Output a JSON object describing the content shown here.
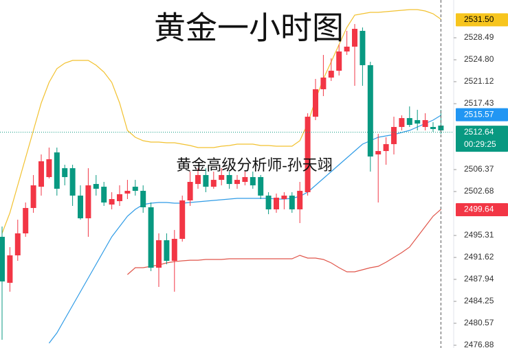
{
  "chart_data": {
    "type": "candlestick",
    "title": "黄金一小时图",
    "annotation": "黄金高级分析师-孙天翊",
    "up_color": "#f23645",
    "down_color": "#089981",
    "open": [
      2495.08,
      2487.36,
      2491.97,
      2495.66,
      2499.92,
      2503.49,
      2505.11,
      2509.25,
      2506.6,
      2506.6,
      2502.0,
      2498.19,
      2503.95,
      2503.49,
      2500.5,
      2501.07,
      2502.34,
      2503.49,
      2502.8,
      2500.04,
      2489.9,
      2494.51,
      2491.05,
      2494.74,
      2501.19,
      2503.95,
      2505.45,
      2503.49,
      2504.64,
      2505.45,
      2503.95,
      2504.3,
      2505.11,
      2505.11,
      2502.0,
      2499.69,
      2501.42,
      2502.0,
      2499.69,
      2502.57,
      2515.24,
      2519.85,
      2521.81,
      2522.96,
      2526.19,
      2527.0,
      2529.65,
      2523.89,
      2508.91,
      2509.48,
      2510.64,
      2513.52,
      2515.01,
      2514.67,
      2513.52,
      2513.52,
      2513.75
    ],
    "high": [
      2496.81,
      2493.35,
      2497.96,
      2500.84,
      2505.45,
      2508.91,
      2510.06,
      2510.06,
      2507.18,
      2507.18,
      2503.72,
      2506.6,
      2505.45,
      2504.3,
      2502.57,
      2503.72,
      2504.64,
      2504.64,
      2503.72,
      2500.84,
      2495.66,
      2495.66,
      2496.23,
      2502.0,
      2506.03,
      2506.6,
      2506.6,
      2506.03,
      2506.6,
      2506.03,
      2505.45,
      2506.26,
      2506.03,
      2505.45,
      2502.57,
      2502.34,
      2502.57,
      2502.57,
      2504.3,
      2515.82,
      2521.58,
      2525.61,
      2525.04,
      2527.34,
      2529.65,
      2530.8,
      2530.22,
      2524.46,
      2512.36,
      2511.79,
      2515.24,
      2515.47,
      2516.97,
      2516.4,
      2515.82,
      2514.32,
      2516.4
    ],
    "low": [
      2477.8,
      2485.87,
      2491.05,
      2495.08,
      2499.11,
      2502.0,
      2504.88,
      2502.0,
      2503.72,
      2500.27,
      2497.96,
      2495.08,
      2502.0,
      2500.27,
      2499.69,
      2500.27,
      2501.42,
      2502.0,
      2499.11,
      2489.32,
      2486.67,
      2490.47,
      2485.87,
      2494.28,
      2500.27,
      2503.15,
      2502.57,
      2503.15,
      2503.72,
      2503.15,
      2503.15,
      2503.72,
      2503.15,
      2501.42,
      2498.88,
      2499.11,
      2499.69,
      2499.11,
      2497.39,
      2502.0,
      2514.67,
      2518.7,
      2521.24,
      2522.16,
      2525.61,
      2520.43,
      2520.43,
      2506.03,
      2500.84,
      2507.18,
      2508.91,
      2512.94,
      2513.52,
      2512.94,
      2512.94,
      2512.71,
      2512.36
    ],
    "close": [
      2487.59,
      2491.97,
      2495.66,
      2499.92,
      2503.72,
      2507.76,
      2508.1,
      2503.15,
      2505.11,
      2502.0,
      2498.19,
      2503.72,
      2503.15,
      2500.84,
      2501.42,
      2502.23,
      2502.8,
      2502.8,
      2500.04,
      2489.9,
      2494.51,
      2491.05,
      2494.74,
      2501.19,
      2504.3,
      2505.45,
      2503.49,
      2504.64,
      2505.45,
      2503.95,
      2504.64,
      2505.11,
      2503.72,
      2502.0,
      2499.69,
      2501.65,
      2502.0,
      2499.69,
      2502.8,
      2515.24,
      2519.85,
      2521.81,
      2522.96,
      2526.19,
      2527.0,
      2529.99,
      2523.89,
      2508.56,
      2509.48,
      2510.64,
      2513.52,
      2515.01,
      2513.86,
      2514.09,
      2514.67,
      2513.17,
      2512.94
    ],
    "bands": [
      {
        "color": "#f2c12e",
        "values": [
          2495.66,
          2499.11,
          2503.72,
          2508.33,
          2512.94,
          2517.55,
          2521.0,
          2523.31,
          2524.23,
          2524.69,
          2524.69,
          2524.69,
          2523.89,
          2522.73,
          2521.0,
          2517.55,
          2512.94,
          2511.79,
          2511.21,
          2510.98,
          2510.98,
          2510.87,
          2510.87,
          2510.64,
          2510.41,
          2510.06,
          2510.06,
          2510.06,
          2510.29,
          2510.41,
          2510.64,
          2510.64,
          2510.64,
          2510.41,
          2510.41,
          2510.29,
          2510.29,
          2510.29,
          2511.21,
          2514.09,
          2518.12,
          2521.58,
          2524.46,
          2527.34,
          2530.22,
          2532.3,
          2532.53,
          2532.76,
          2532.76,
          2532.87,
          2532.99,
          2533.1,
          2533.22,
          2533.22,
          2532.99,
          2532.53,
          2531.6
        ]
      },
      {
        "color": "#2e9be6",
        "values": [
          null,
          null,
          null,
          null,
          null,
          null,
          2477.23,
          2478.95,
          2481.26,
          2483.56,
          2485.87,
          2488.17,
          2490.47,
          2492.78,
          2495.08,
          2496.81,
          2498.54,
          2499.69,
          2500.5,
          2500.73,
          2500.84,
          2500.84,
          2500.73,
          2500.73,
          2500.84,
          2500.96,
          2501.07,
          2501.19,
          2501.3,
          2501.42,
          2501.53,
          2501.53,
          2501.53,
          2501.53,
          2501.53,
          2501.42,
          2501.42,
          2501.53,
          2501.88,
          2502.57,
          2503.72,
          2504.88,
          2506.03,
          2507.18,
          2508.33,
          2509.48,
          2510.64,
          2511.21,
          2511.79,
          2512.02,
          2512.25,
          2512.59,
          2512.94,
          2513.52,
          2514.09,
          2514.67,
          2515.47
        ]
      },
      {
        "color": "#e0554a",
        "values": [
          null,
          null,
          null,
          null,
          null,
          null,
          null,
          null,
          null,
          null,
          null,
          null,
          null,
          null,
          null,
          null,
          2488.75,
          2489.9,
          2489.9,
          2490.13,
          2490.36,
          2490.7,
          2490.93,
          2491.05,
          2491.16,
          2491.16,
          2491.28,
          2491.28,
          2491.28,
          2491.4,
          2491.4,
          2491.4,
          2491.4,
          2491.4,
          2491.4,
          2491.4,
          2491.4,
          2491.4,
          2491.97,
          2491.51,
          2491.51,
          2491.28,
          2490.7,
          2489.9,
          2489.21,
          2489.21,
          2489.55,
          2489.9,
          2490.13,
          2490.82,
          2491.63,
          2492.43,
          2493.35,
          2495.08,
          2496.81,
          2498.54,
          2499.69
        ]
      }
    ],
    "ylim": [
      2476.42,
      2534.83
    ],
    "yticks": [
      2476.88,
      2480.57,
      2484.25,
      2487.94,
      2491.62,
      2495.31,
      2502.68,
      2506.37,
      2517.43,
      2521.12,
      {
        "value": 2524.8,
        "label": "2524.80"
      },
      2528.49
    ],
    "price_labels": [
      {
        "value": {
          "value": 2531.5,
          "label": "2531.50"
        },
        "color": "#f7c51e",
        "text_color": "#000000"
      },
      {
        "value": 2515.57,
        "color": "#2196f3",
        "text_color": "#ffffff"
      },
      {
        "value": 2512.64,
        "color": "#089981",
        "text_color": "#ffffff",
        "countdown": "00:29:25"
      },
      {
        "value": 2499.64,
        "color": "#f23645",
        "text_color": "#ffffff"
      }
    ]
  }
}
